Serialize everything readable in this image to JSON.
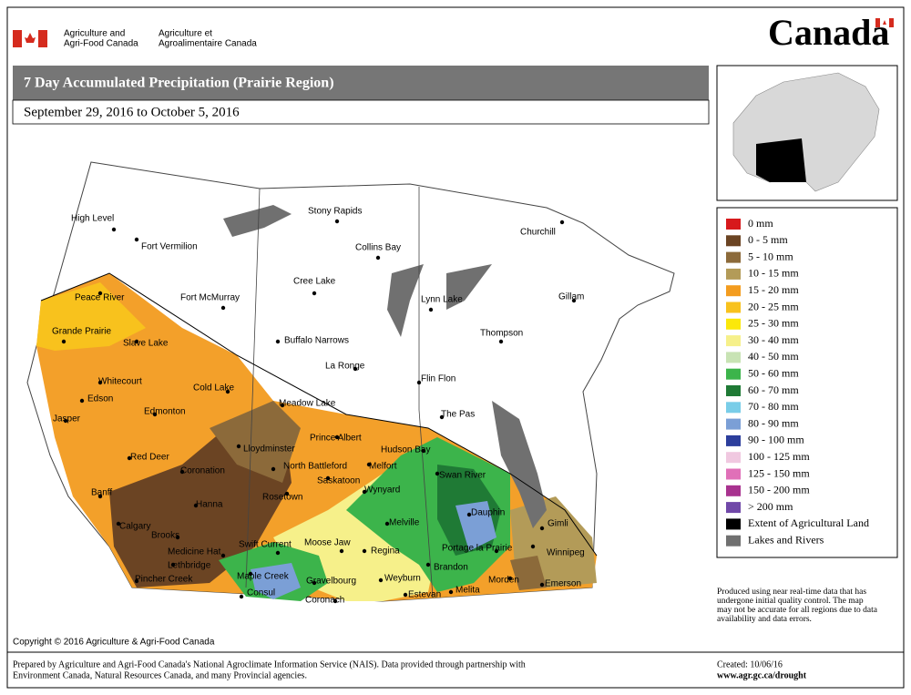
{
  "header": {
    "department_en": [
      "Agriculture and",
      "Agri-Food Canada"
    ],
    "department_fr": [
      "Agriculture et",
      "Agroalimentaire Canada"
    ],
    "wordmark": "Canada"
  },
  "title": "7 Day Accumulated Precipitation (Prairie Region)",
  "date_range": "September 29, 2016 to October 5, 2016",
  "places": [
    "High Level",
    "Fort Vermilion",
    "Peace River",
    "Fort McMurray",
    "Grande Prairie",
    "Slave Lake",
    "Whitecourt",
    "Edson",
    "Jasper",
    "Edmonton",
    "Cold Lake",
    "Meadow Lake",
    "Lloydminster",
    "Red Deer",
    "Coronation",
    "Banff",
    "Calgary",
    "Hanna",
    "Brooks",
    "Medicine Hat",
    "Lethbridge",
    "Pincher Creek",
    "Swift Current",
    "Maple Creek",
    "Consul",
    "Gravelbourg",
    "Coronach",
    "Moose Jaw",
    "Regina",
    "Weyburn",
    "Estevan",
    "Rosetown",
    "Saskatoon",
    "North Battleford",
    "Prince Albert",
    "Wynyard",
    "Melfort",
    "Hudson Bay",
    "Melville",
    "Swan River",
    "The Pas",
    "Flin Flon",
    "Dauphin",
    "Portage la Prairie",
    "Brandon",
    "Melita",
    "Morden",
    "Emerson",
    "Winnipeg",
    "Gimli",
    "Thompson",
    "Gillam",
    "Churchill",
    "Lynn Lake",
    "Collins Bay",
    "Stony Rapids",
    "Cree Lake",
    "Buffalo Narrows",
    "La Ronge"
  ],
  "legend": [
    {
      "label": "0 mm",
      "color": "#d7191c"
    },
    {
      "label": "0 - 5 mm",
      "color": "#6b4423"
    },
    {
      "label": "5 - 10 mm",
      "color": "#8c6a3a"
    },
    {
      "label": "10 - 15 mm",
      "color": "#b39b58"
    },
    {
      "label": "15 - 20 mm",
      "color": "#f39c1f"
    },
    {
      "label": "20 - 25 mm",
      "color": "#f8c21d"
    },
    {
      "label": "25 - 30 mm",
      "color": "#fbe80a"
    },
    {
      "label": "30 - 40 mm",
      "color": "#f6f08a"
    },
    {
      "label": "40 - 50 mm",
      "color": "#c8e3b4"
    },
    {
      "label": "50 - 60 mm",
      "color": "#3cb44b"
    },
    {
      "label": "60 - 70 mm",
      "color": "#1f7a35"
    },
    {
      "label": "70 - 80 mm",
      "color": "#79cde8"
    },
    {
      "label": "80 - 90 mm",
      "color": "#7b9fd6"
    },
    {
      "label": "90 - 100 mm",
      "color": "#2c3e9c"
    },
    {
      "label": "100 - 125 mm",
      "color": "#f0c8e0"
    },
    {
      "label": "125 - 150 mm",
      "color": "#e070b8"
    },
    {
      "label": "150 - 200 mm",
      "color": "#a8328f"
    },
    {
      "label": "> 200 mm",
      "color": "#7048a8"
    },
    {
      "label": "Extent of Agricultural Land",
      "color": "#000000"
    },
    {
      "label": "Lakes and Rivers",
      "color": "#707070"
    }
  ],
  "note": [
    "Produced using near real-time data that has",
    "undergone initial quality control.  The map",
    "may not be accurate for all regions due to data",
    "availability and data errors."
  ],
  "copyright": "Copyright © 2016 Agriculture & Agri-Food Canada",
  "footer": {
    "prepared": [
      "Prepared by Agriculture and Agri-Food Canada's National Agroclimate Information Service (NAIS).  Data provided through partnership with",
      "Environment Canada, Natural Resources Canada, and many Provincial agencies."
    ],
    "created": "Created: 10/06/16",
    "url": "www.agr.gc.ca/drought"
  }
}
